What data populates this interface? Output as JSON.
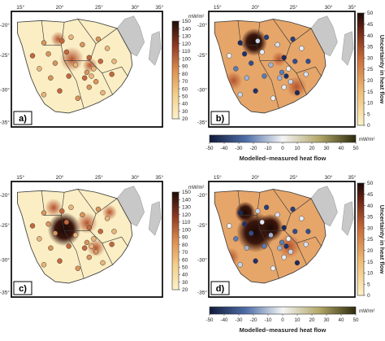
{
  "figure": {
    "panels": [
      {
        "letter": "a)",
        "kind": "measured"
      },
      {
        "letter": "b)",
        "kind": "uncertainty"
      },
      {
        "letter": "c)",
        "kind": "measured"
      },
      {
        "letter": "d)",
        "kind": "uncertainty"
      }
    ],
    "lon_ticks": [
      "15°",
      "20°",
      "25°",
      "30°",
      "35°"
    ],
    "lat_ticks": [
      "-20°",
      "-25°",
      "-30°",
      "-35°"
    ],
    "heat_flow_colorbar": {
      "unit": "mW/m²",
      "ticks": [
        "150",
        "140",
        "130",
        "120",
        "110",
        "100",
        "90",
        "80",
        "70",
        "60",
        "50",
        "40",
        "30",
        "20"
      ]
    },
    "uncertainty_colorbar": {
      "label": "Uncertainty in heat flow",
      "ticks": [
        "50",
        "45",
        "40",
        "35",
        "30",
        "25",
        "20",
        "15",
        "10",
        "5",
        "0"
      ]
    },
    "residual_colorbar": {
      "label": "Modelled–measured heat flow",
      "unit": "mW/m²",
      "ticks": [
        "-50",
        "-40",
        "-30",
        "-20",
        "-10",
        "0",
        "10",
        "20",
        "30",
        "40",
        "50"
      ]
    },
    "colors": {
      "land_low": "#fbeec4",
      "land_mid": "#e8a35e",
      "hot": "#7a2b1a",
      "very_hot": "#1e0c08",
      "ocean": "#ffffff",
      "neighbour_land": "#c8c8c8"
    }
  }
}
